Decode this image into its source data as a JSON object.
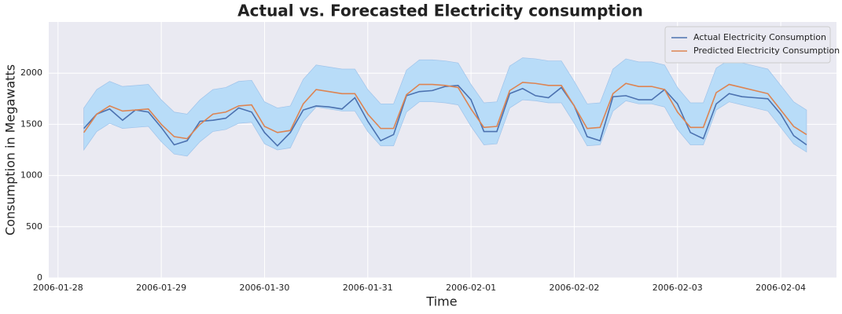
{
  "chart_data": {
    "type": "line",
    "title": "Actual vs. Forecasted Electricity consumption",
    "xlabel": "Time",
    "ylabel": "Consumption in Megawatts",
    "x": [
      0.25,
      0.375,
      0.5,
      0.625,
      0.75,
      0.875,
      1,
      1.125,
      1.25,
      1.375,
      1.5,
      1.625,
      1.75,
      1.875,
      2,
      2.125,
      2.25,
      2.375,
      2.5,
      2.625,
      2.75,
      2.875,
      3,
      3.125,
      3.25,
      3.375,
      3.5,
      3.625,
      3.75,
      3.875,
      4,
      4.125,
      4.25,
      4.375,
      4.5,
      4.625,
      4.75,
      4.875,
      5,
      5.125,
      5.25,
      5.375,
      5.5,
      5.625,
      5.75,
      5.875,
      6,
      6.125,
      6.25,
      6.375,
      6.5,
      6.625,
      6.75,
      6.875,
      7,
      7.125,
      7.25
    ],
    "series": [
      {
        "name": "Actual Electricity Consumption",
        "color": "#4c72b0",
        "values": [
          1460,
          1600,
          1650,
          1540,
          1640,
          1620,
          1470,
          1300,
          1340,
          1530,
          1540,
          1560,
          1660,
          1620,
          1420,
          1290,
          1420,
          1640,
          1680,
          1670,
          1650,
          1760,
          1530,
          1340,
          1400,
          1780,
          1820,
          1830,
          1870,
          1880,
          1740,
          1430,
          1430,
          1800,
          1850,
          1780,
          1760,
          1860,
          1680,
          1380,
          1340,
          1770,
          1780,
          1740,
          1740,
          1840,
          1700,
          1420,
          1360,
          1700,
          1800,
          1770,
          1760,
          1750,
          1600,
          1390,
          1300
        ]
      },
      {
        "name": "Predicted Electricity Consumption",
        "color": "#dd8452",
        "values": [
          1420,
          1600,
          1680,
          1630,
          1640,
          1650,
          1500,
          1380,
          1360,
          1500,
          1600,
          1620,
          1680,
          1690,
          1480,
          1420,
          1440,
          1700,
          1840,
          1820,
          1800,
          1800,
          1600,
          1460,
          1460,
          1790,
          1890,
          1890,
          1880,
          1860,
          1650,
          1470,
          1480,
          1830,
          1910,
          1900,
          1880,
          1880,
          1680,
          1460,
          1470,
          1800,
          1900,
          1870,
          1870,
          1840,
          1620,
          1470,
          1470,
          1810,
          1890,
          1860,
          1830,
          1800,
          1640,
          1480,
          1400
        ]
      }
    ],
    "band": {
      "color": "#b8dcf8",
      "edge": "#9fc3ea",
      "upper": [
        1660,
        1840,
        1920,
        1870,
        1880,
        1890,
        1740,
        1620,
        1600,
        1740,
        1840,
        1860,
        1920,
        1930,
        1720,
        1660,
        1680,
        1940,
        2080,
        2060,
        2040,
        2040,
        1840,
        1700,
        1700,
        2030,
        2130,
        2130,
        2120,
        2100,
        1890,
        1710,
        1720,
        2070,
        2150,
        2140,
        2120,
        2120,
        1920,
        1700,
        1710,
        2040,
        2140,
        2110,
        2110,
        2080,
        1860,
        1710,
        1710,
        2050,
        2130,
        2100,
        2070,
        2040,
        1880,
        1720,
        1640
      ],
      "lower": [
        1250,
        1430,
        1510,
        1460,
        1470,
        1480,
        1330,
        1210,
        1190,
        1330,
        1430,
        1450,
        1510,
        1520,
        1310,
        1250,
        1270,
        1530,
        1670,
        1650,
        1630,
        1630,
        1430,
        1290,
        1290,
        1620,
        1720,
        1720,
        1710,
        1690,
        1480,
        1300,
        1310,
        1660,
        1740,
        1730,
        1710,
        1710,
        1510,
        1290,
        1300,
        1630,
        1730,
        1700,
        1700,
        1670,
        1450,
        1300,
        1300,
        1640,
        1720,
        1690,
        1660,
        1630,
        1470,
        1310,
        1230
      ]
    },
    "xlim": [
      -0.09,
      7.54
    ],
    "xticks": [
      {
        "value": 0,
        "label": "2006-01-28"
      },
      {
        "value": 1,
        "label": "2006-01-29"
      },
      {
        "value": 2,
        "label": "2006-01-30"
      },
      {
        "value": 3,
        "label": "2006-01-31"
      },
      {
        "value": 4,
        "label": "2006-02-01"
      },
      {
        "value": 5,
        "label": "2006-02-02"
      },
      {
        "value": 6,
        "label": "2006-02-03"
      },
      {
        "value": 7,
        "label": "2006-02-04"
      }
    ],
    "ylim": [
      0,
      2500
    ],
    "yticks": [
      0,
      500,
      1000,
      1500,
      2000
    ],
    "grid": true,
    "legend": "upper right"
  }
}
